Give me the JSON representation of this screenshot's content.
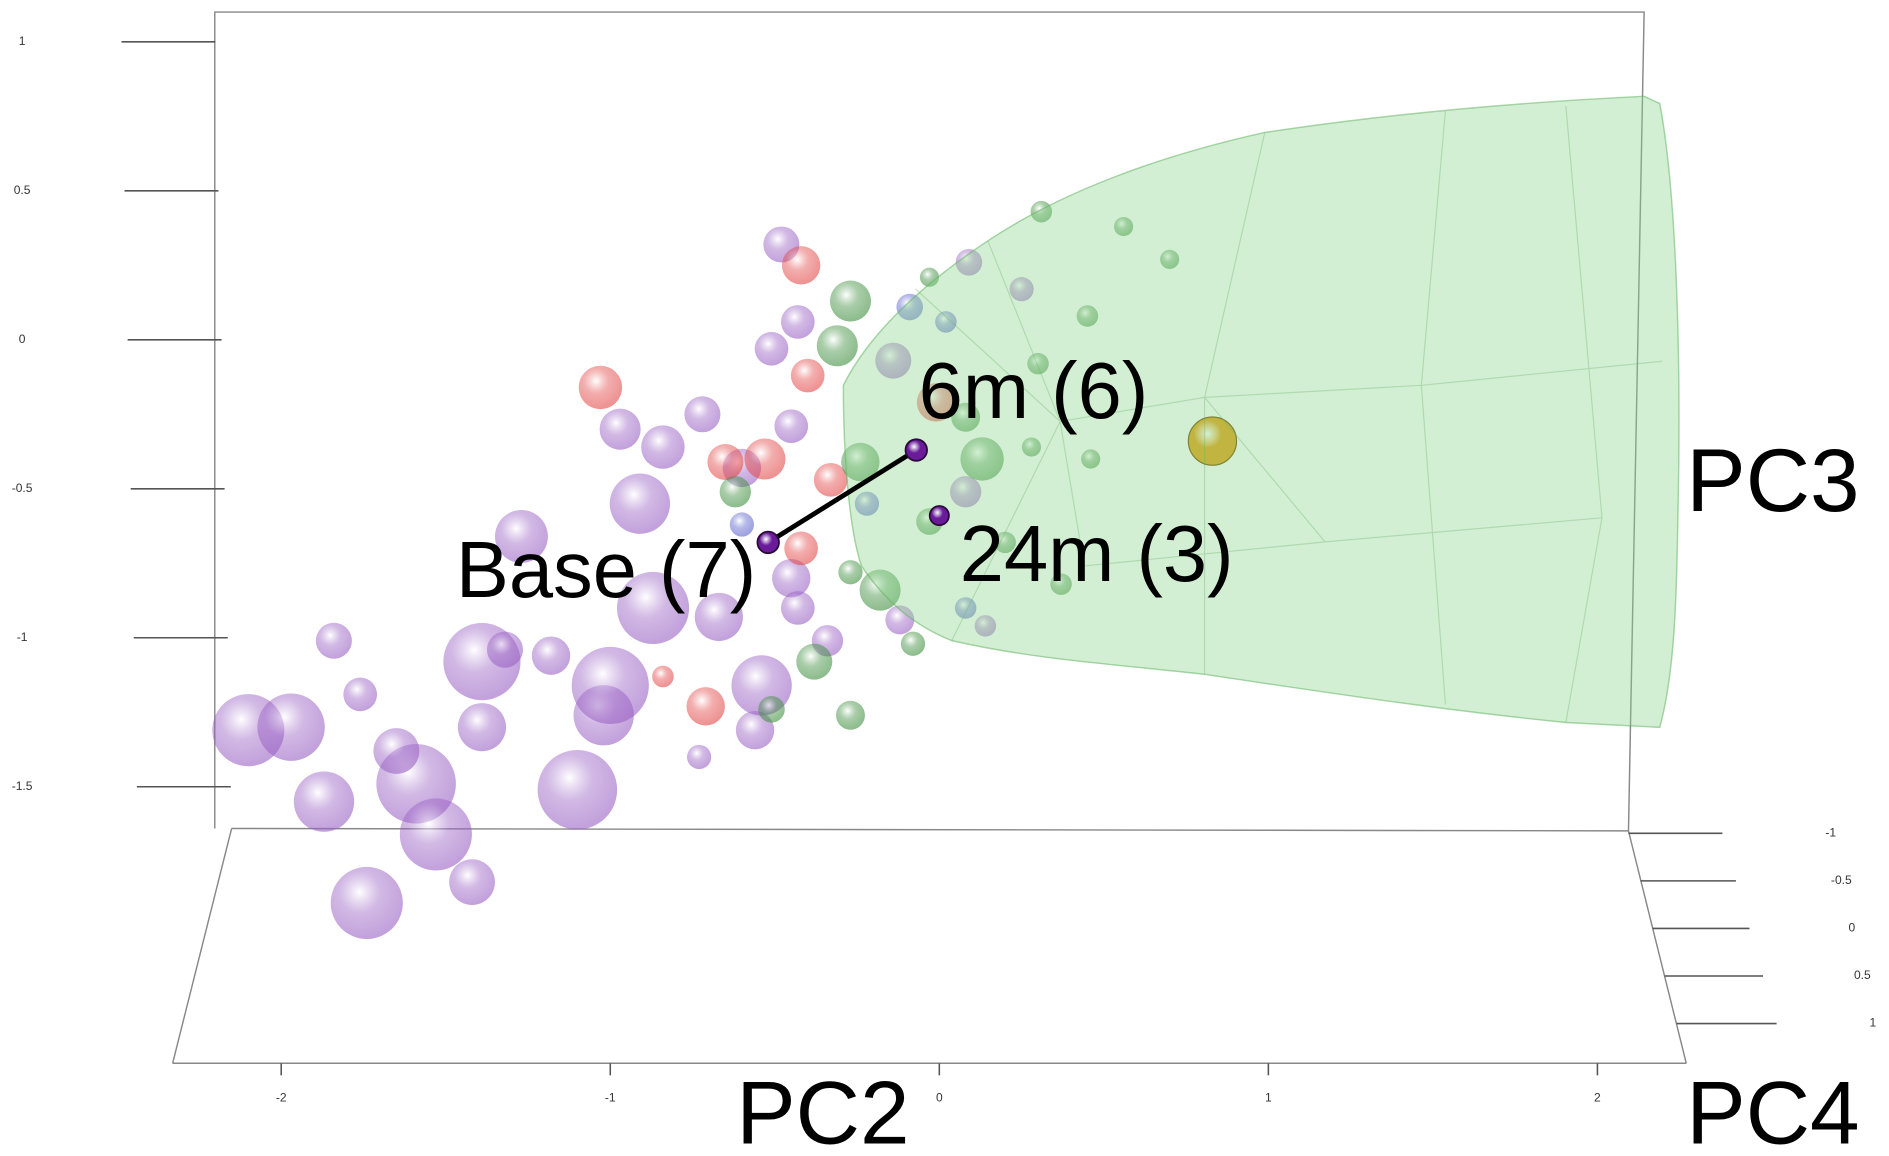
{
  "chart_data": {
    "type": "scatter3d",
    "xlabel": "PC2",
    "ylabel": "PC3",
    "zlabel": "PC4",
    "xlim": [
      -2.33,
      2.27
    ],
    "ylim": [
      -1.64,
      1.1
    ],
    "zlim": [
      -1,
      1
    ],
    "xticks": [
      -2,
      -1,
      0,
      1,
      2
    ],
    "yticks": [
      1,
      0.5,
      0,
      -0.5,
      -1,
      -1.5
    ],
    "zticks": [
      -1,
      -0.5,
      0,
      0.5,
      1
    ],
    "series": [
      {
        "color": "#9a62c4",
        "x": [
          -2.1,
          -1.97,
          -1.87,
          -1.74,
          -1.59,
          -1.53,
          -1.42,
          -1.39,
          -1.65,
          -1.76,
          -1.84,
          -1.39,
          -1.27,
          -1.1,
          -1.02,
          -1.0,
          -0.91,
          -0.87,
          -0.67,
          -0.54,
          -0.56,
          -1.18,
          -1.32,
          -0.97,
          -0.84,
          -0.72,
          -0.51,
          -0.43,
          -0.48,
          -0.45,
          -0.6,
          -0.45,
          -0.43,
          -0.34,
          -0.14,
          -0.12,
          -0.73,
          0.09,
          0.25,
          0.14,
          0.08
        ],
        "y": [
          -1.31,
          -1.3,
          -1.55,
          -1.89,
          -1.49,
          -1.66,
          -1.82,
          -1.3,
          -1.38,
          -1.19,
          -1.01,
          -1.08,
          -0.66,
          -1.51,
          -1.26,
          -1.16,
          -0.55,
          -0.9,
          -0.93,
          -1.16,
          -1.31,
          -1.06,
          -1.04,
          -0.3,
          -0.36,
          -0.25,
          -0.03,
          0.06,
          0.32,
          -0.29,
          -0.43,
          -0.8,
          -0.9,
          -1.01,
          -0.07,
          -0.94,
          -1.4,
          0.26,
          0.17,
          -0.96,
          -0.51
        ],
        "z": [
          0.71,
          0.57,
          0.36,
          0.71,
          0.93,
          0.71,
          -0.07,
          0,
          -0.07,
          -0.43,
          -0.36,
          0.86,
          0.14,
          0.93,
          0.36,
          0.86,
          0.36,
          0.71,
          0,
          0.36,
          -0.29,
          -0.29,
          -0.36,
          -0.21,
          -0.14,
          -0.36,
          -0.43,
          -0.43,
          -0.36,
          -0.43,
          -0.29,
          -0.29,
          -0.43,
          -0.5,
          -0.36,
          -0.57,
          -0.71,
          -0.64,
          -0.71,
          -0.79,
          -0.5
        ]
      },
      {
        "color": "#e34848",
        "x": [
          -0.42,
          -1.03,
          -0.4,
          -0.65,
          -0.53,
          -0.33,
          -0.71,
          -0.42,
          -0.01,
          -0.84
        ],
        "y": [
          0.25,
          -0.16,
          -0.12,
          -0.41,
          -0.4,
          -0.47,
          -1.23,
          -0.7,
          -0.21,
          -1.13
        ],
        "z": [
          -0.29,
          -0.14,
          -0.43,
          -0.36,
          -0.21,
          -0.43,
          -0.29,
          -0.43,
          -0.29,
          -0.79
        ]
      },
      {
        "color": "#3f8f3f",
        "x": [
          -0.27,
          -0.31,
          -0.24,
          -0.18,
          -0.38,
          -0.27,
          -0.51,
          -0.62,
          0.13,
          0.31,
          0.56,
          0.7,
          0.08,
          -0.03,
          0.3,
          0.45,
          0.46,
          0.28,
          -0.03,
          -0.08,
          0.37,
          0.2,
          -0.27
        ],
        "y": [
          0.13,
          -0.02,
          -0.41,
          -0.84,
          -1.08,
          -1.26,
          -1.24,
          -0.51,
          -0.4,
          0.43,
          0.38,
          0.27,
          -0.26,
          0.21,
          -0.08,
          0.08,
          -0.4,
          -0.36,
          -0.61,
          -1.02,
          -0.82,
          -0.68,
          -0.78
        ],
        "z": [
          -0.21,
          -0.21,
          -0.29,
          -0.21,
          -0.36,
          -0.57,
          -0.64,
          -0.5,
          -0.14,
          -0.79,
          -0.86,
          -0.86,
          -0.57,
          -0.86,
          -0.79,
          -0.79,
          -0.86,
          -0.86,
          -0.64,
          -0.71,
          -0.79,
          -0.79,
          -0.71
        ]
      },
      {
        "color": "#5a62cc",
        "x": [
          -0.09,
          0.02,
          -0.22,
          -0.6,
          0.08
        ],
        "y": [
          0.11,
          0.06,
          -0.55,
          -0.62,
          -0.9
        ],
        "z": [
          -0.64,
          -0.79,
          -0.71,
          -0.71,
          -0.79
        ]
      },
      {
        "color": "#e2a012",
        "solid": true,
        "x": [
          0.83
        ],
        "y": [
          -0.34
        ],
        "z": [
          0
        ]
      }
    ],
    "annotations": [
      {
        "text": "Base (7)",
        "x": -0.52,
        "y": -0.68,
        "z": -0.79
      },
      {
        "text": "6m (6)",
        "x": -0.07,
        "y": -0.37,
        "z": -0.79
      },
      {
        "text": "24m (3)",
        "x": 0.0,
        "y": -0.59,
        "z": -0.86
      }
    ],
    "annotation_color": "#6a1b9a"
  }
}
